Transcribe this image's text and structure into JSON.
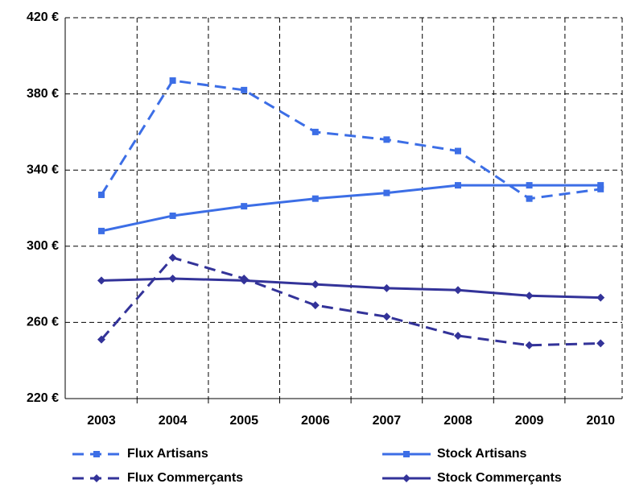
{
  "chart_data": {
    "type": "line",
    "categories": [
      "2003",
      "2004",
      "2005",
      "2006",
      "2007",
      "2008",
      "2009",
      "2010"
    ],
    "series": [
      {
        "name": "Flux Artisans",
        "color": "#3c6ee6",
        "dashed": true,
        "marker": "square",
        "values": [
          327,
          387,
          382,
          360,
          356,
          350,
          325,
          330
        ]
      },
      {
        "name": "Stock Artisans",
        "color": "#3c6ee6",
        "dashed": false,
        "marker": "square",
        "values": [
          308,
          316,
          321,
          325,
          328,
          332,
          332,
          332
        ]
      },
      {
        "name": "Flux Commerçants",
        "color": "#333399",
        "dashed": true,
        "marker": "diamond",
        "values": [
          251,
          294,
          283,
          269,
          263,
          253,
          248,
          249
        ]
      },
      {
        "name": "Stock Commerçants",
        "color": "#333399",
        "dashed": false,
        "marker": "diamond",
        "values": [
          282,
          283,
          282,
          280,
          278,
          277,
          274,
          273
        ]
      }
    ],
    "ylim": [
      220,
      420
    ],
    "yticks": [
      {
        "value": 220,
        "label": "220 €"
      },
      {
        "value": 260,
        "label": "260 €"
      },
      {
        "value": 300,
        "label": "300 €"
      },
      {
        "value": 340,
        "label": "340 €"
      },
      {
        "value": 380,
        "label": "380 €"
      },
      {
        "value": 420,
        "label": "420 €"
      }
    ],
    "grid": true
  }
}
